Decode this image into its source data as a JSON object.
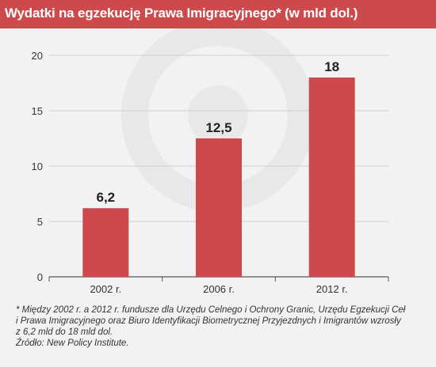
{
  "title": "Wydatki na egzekucję Prawa Imigracyjnego* (w mld dol.)",
  "chart_data": {
    "type": "bar",
    "categories": [
      "2002 r.",
      "2006 r.",
      "2012 r."
    ],
    "values": [
      6.2,
      12.5,
      18
    ],
    "value_labels": [
      "6,2",
      "12,5",
      "18"
    ],
    "yticks": [
      0,
      5,
      10,
      15,
      20
    ],
    "ylim": [
      0,
      20
    ],
    "grid": true,
    "bar_color": "#cc4a4c"
  },
  "footnote": {
    "line1": "* Między 2002 r. a 2012 r. fundusze dla Urzędu Celnego i Ochrony Granic, Urzędu Egzekucji Ceł",
    "line2": "i Prawa Imigracyjnego oraz Biuro Identyfikacji Biometrycznej Przyjezdnych i Imigrantów wzrosły",
    "line3": "z 6,2 mld do 18 mld dol.",
    "source": "Źródło: New Policy Institute."
  },
  "colors": {
    "header_background": "#cc4a4c",
    "page_background": "#f2f2f2",
    "grid": "#cfcfcf",
    "watermark": "#e8e8e8"
  }
}
